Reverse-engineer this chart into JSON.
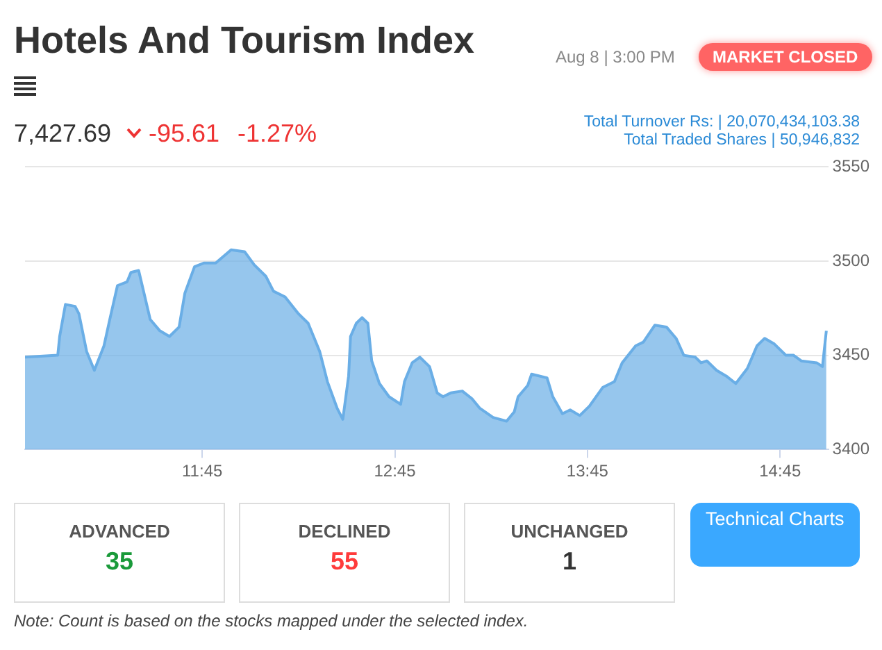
{
  "chart_data": {
    "type": "area",
    "title": "Hotels And Tourism Index",
    "x": [
      10.83,
      11.0,
      11.01,
      11.04,
      11.09,
      11.11,
      11.15,
      11.19,
      11.24,
      11.27,
      11.31,
      11.36,
      11.38,
      11.42,
      11.48,
      11.53,
      11.58,
      11.63,
      11.66,
      11.71,
      11.76,
      11.82,
      11.9,
      11.97,
      12.02,
      12.08,
      12.12,
      12.18,
      12.25,
      12.3,
      12.36,
      12.4,
      12.45,
      12.48,
      12.51,
      12.52,
      12.55,
      12.58,
      12.61,
      12.63,
      12.67,
      12.72,
      12.78,
      12.8,
      12.84,
      12.88,
      12.93,
      12.97,
      13.0,
      13.04,
      13.1,
      13.15,
      13.19,
      13.26,
      13.33,
      13.37,
      13.39,
      13.44,
      13.46,
      13.54,
      13.57,
      13.62,
      13.66,
      13.71,
      13.76,
      13.83,
      13.89,
      13.93,
      14.0,
      14.04,
      14.1,
      14.16,
      14.21,
      14.25,
      14.31,
      14.34,
      14.37,
      14.42,
      14.47,
      14.52,
      14.58,
      14.63,
      14.67,
      14.72,
      14.78,
      14.82,
      14.86,
      14.94,
      14.97,
      14.99
    ],
    "series": [
      {
        "color": "#6aaee6",
        "values": [
          3449,
          3450,
          3460,
          3477,
          3476,
          3472,
          3452,
          3442,
          3455,
          3469,
          3487,
          3489,
          3494,
          3495,
          3469,
          3463,
          3460,
          3465,
          3483,
          3497,
          3499,
          3499,
          3506,
          3505,
          3498,
          3492,
          3484,
          3481,
          3472,
          3467,
          3452,
          3436,
          3422,
          3416,
          3439,
          3460,
          3467,
          3470,
          3467,
          3447,
          3435,
          3428,
          3424,
          3436,
          3446,
          3449,
          3444,
          3430,
          3428,
          3430,
          3431,
          3427,
          3422,
          3417,
          3415,
          3420,
          3428,
          3434,
          3440,
          3438,
          3428,
          3419,
          3421,
          3418,
          3423,
          3433,
          3436,
          3446,
          3455,
          3457,
          3466,
          3465,
          3459,
          3450,
          3449,
          3446,
          3447,
          3442,
          3439,
          3435,
          3443,
          3455,
          3459,
          3456,
          3450,
          3450,
          3447,
          3446,
          3444,
          3463
        ]
      }
    ],
    "xlim": [
      10.83,
      15.0
    ],
    "xticks": [
      {
        "value": 11.75,
        "label": "11:45"
      },
      {
        "value": 12.75,
        "label": "12:45"
      },
      {
        "value": 13.75,
        "label": "13:45"
      },
      {
        "value": 14.75,
        "label": "14:45"
      }
    ],
    "ylim": [
      3400,
      3550
    ],
    "yticks": [
      3400,
      3450,
      3500,
      3550
    ],
    "grid": "y",
    "marker": "none",
    "annotations": [
      "Aug 8 | 3:00 PM",
      "MARKET CLOSED",
      "7,427.69",
      "-95.61",
      "-1.27%",
      "Total Turnover Rs: | 20,070,434,103.38",
      "Total Traded Shares | 50,946,832",
      "ADVANCED",
      "35",
      "DECLINED",
      "55",
      "UNCHANGED",
      "1",
      "Technical Charts",
      "Note: Count is based on the stocks mapped under the selected index."
    ]
  }
}
